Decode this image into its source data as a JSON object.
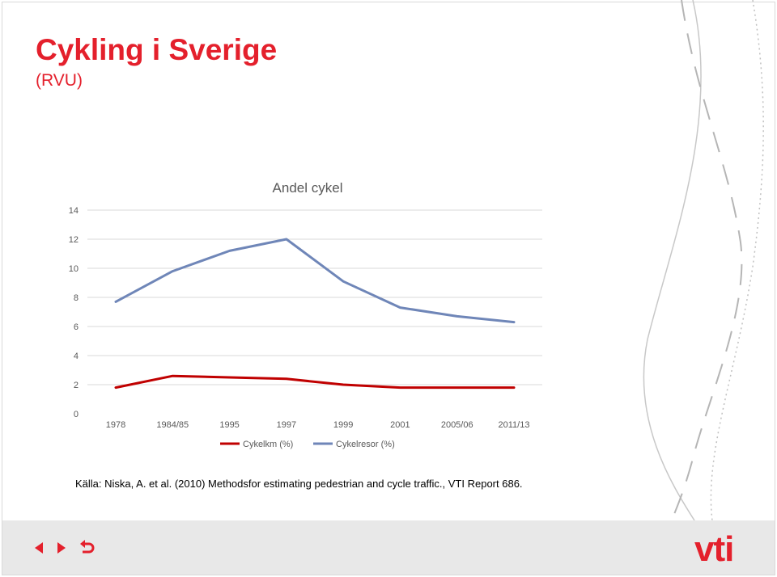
{
  "slide": {
    "title": "Cykling i Sverige",
    "subtitle": "(RVU)",
    "source": "Källa: Niska, A. et al. (2010) Methodsfor estimating pedestrian and cycle traffic., VTI  Report 686.",
    "logo": "vti"
  },
  "nav": {
    "prev_icon": "triangle-left-icon",
    "next_icon": "triangle-right-icon",
    "return_icon": "return-arrow-icon"
  },
  "colors": {
    "accent": "#e4202c",
    "series_red": "#c00000",
    "series_blue": "#6f86b8",
    "grid": "#d9d9d9",
    "footer": "#e8e8e8"
  },
  "chart_data": {
    "type": "line",
    "title": "Andel cykel",
    "categories": [
      "1978",
      "1984/85",
      "1995",
      "1997",
      "1999",
      "2001",
      "2005/06",
      "2011/13"
    ],
    "ylim": [
      0,
      14
    ],
    "yticks": [
      0,
      2,
      4,
      6,
      8,
      10,
      12,
      14
    ],
    "grid": true,
    "legend_position": "bottom",
    "series": [
      {
        "name": "Cykelkm (%)",
        "color": "#c00000",
        "values": [
          1.8,
          2.6,
          2.5,
          2.4,
          2.0,
          1.8,
          1.8,
          1.8
        ]
      },
      {
        "name": "Cykelresor (%)",
        "color": "#6f86b8",
        "values": [
          7.7,
          9.8,
          11.2,
          12.0,
          9.1,
          7.3,
          6.7,
          6.3
        ]
      }
    ]
  }
}
